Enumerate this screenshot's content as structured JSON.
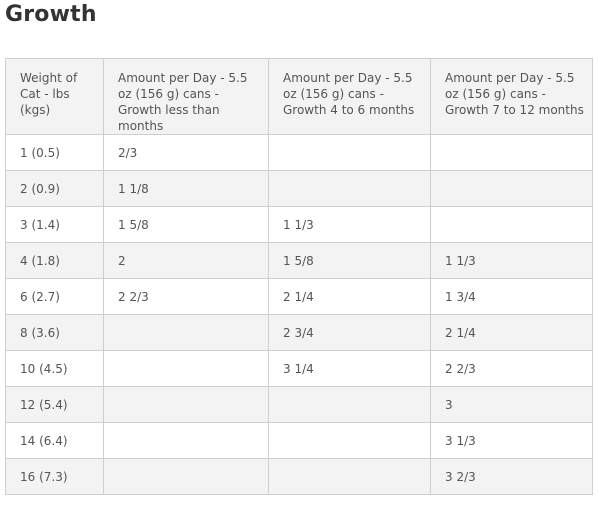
{
  "title": "Growth",
  "table": {
    "headers": [
      "Weight of Cat - lbs (kgs)",
      "Amount per Day - 5.5 oz (156 g) cans - Growth less than months",
      "Amount per Day - 5.5 oz (156 g) cans - Growth 4 to 6 months",
      "Amount per Day - 5.5 oz (156 g) cans - Growth 7 to 12 months"
    ],
    "rows": [
      [
        "1 (0.5)",
        "2/3",
        "",
        ""
      ],
      [
        "2 (0.9)",
        "1 1/8",
        "",
        ""
      ],
      [
        "3 (1.4)",
        "1 5/8",
        "1 1/3",
        ""
      ],
      [
        "4 (1.8)",
        "2",
        "1 5/8",
        "1 1/3"
      ],
      [
        "6 (2.7)",
        "2 2/3",
        "2 1/4",
        "1 3/4"
      ],
      [
        "8 (3.6)",
        "",
        "2 3/4",
        "2 1/4"
      ],
      [
        "10 (4.5)",
        "",
        "3 1/4",
        "2 2/3"
      ],
      [
        "12 (5.4)",
        "",
        "",
        "3"
      ],
      [
        "14 (6.4)",
        "",
        "",
        "3 1/3"
      ],
      [
        "16 (7.3)",
        "",
        "",
        "3 2/3"
      ]
    ]
  }
}
